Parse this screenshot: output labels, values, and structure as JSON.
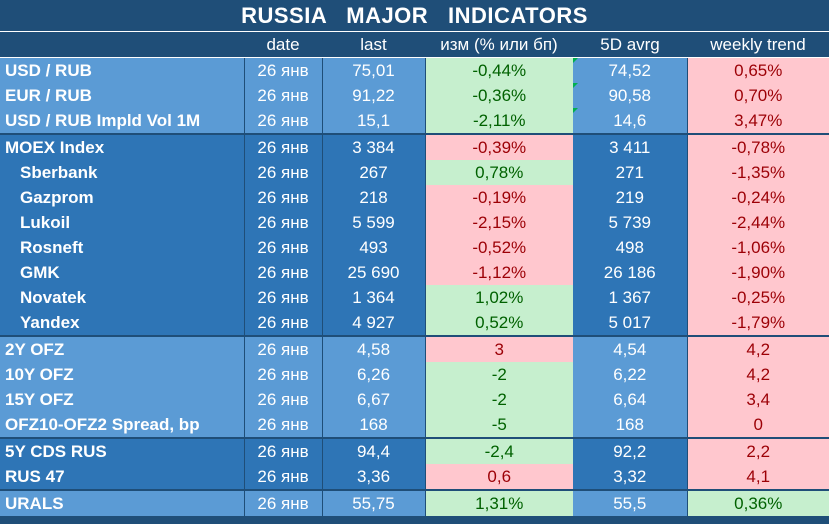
{
  "title": "RUSSIA   MAJOR   INDICATORS",
  "columns": {
    "name": "",
    "date": "date",
    "last": "last",
    "change": "изм (% или бп)",
    "avg5d": "5D avrg",
    "weekly": "weekly trend"
  },
  "rows": [
    {
      "name": "USD / RUB",
      "date": "26 янв",
      "last": "75,01",
      "change": "-0,44%",
      "change_sign": "pos",
      "avg5d": "74,52",
      "weekly": "0,65%",
      "weekly_sign": "neg"
    },
    {
      "name": "EUR / RUB",
      "date": "26 янв",
      "last": "91,22",
      "change": "-0,36%",
      "change_sign": "pos",
      "avg5d": "90,58",
      "weekly": "0,70%",
      "weekly_sign": "neg"
    },
    {
      "name": "USD / RUB Impld Vol 1M",
      "date": "26 янв",
      "last": "15,1",
      "change": "-2,11%",
      "change_sign": "pos",
      "avg5d": "14,6",
      "weekly": "3,47%",
      "weekly_sign": "neg"
    },
    {
      "name": "MOEX Index",
      "date": "26 янв",
      "last": "3 384",
      "change": "-0,39%",
      "change_sign": "neg",
      "avg5d": "3 411",
      "weekly": "-0,78%",
      "weekly_sign": "neg"
    },
    {
      "name": "Sberbank",
      "date": "26 янв",
      "last": "267",
      "change": "0,78%",
      "change_sign": "pos",
      "avg5d": "271",
      "weekly": "-1,35%",
      "weekly_sign": "neg"
    },
    {
      "name": "Gazprom",
      "date": "26 янв",
      "last": "218",
      "change": "-0,19%",
      "change_sign": "neg",
      "avg5d": "219",
      "weekly": "-0,24%",
      "weekly_sign": "neg"
    },
    {
      "name": "Lukoil",
      "date": "26 янв",
      "last": "5 599",
      "change": "-2,15%",
      "change_sign": "neg",
      "avg5d": "5 739",
      "weekly": "-2,44%",
      "weekly_sign": "neg"
    },
    {
      "name": "Rosneft",
      "date": "26 янв",
      "last": "493",
      "change": "-0,52%",
      "change_sign": "neg",
      "avg5d": "498",
      "weekly": "-1,06%",
      "weekly_sign": "neg"
    },
    {
      "name": "GMK",
      "date": "26 янв",
      "last": "25 690",
      "change": "-1,12%",
      "change_sign": "neg",
      "avg5d": "26 186",
      "weekly": "-1,90%",
      "weekly_sign": "neg"
    },
    {
      "name": "Novatek",
      "date": "26 янв",
      "last": "1 364",
      "change": "1,02%",
      "change_sign": "pos",
      "avg5d": "1 367",
      "weekly": "-0,25%",
      "weekly_sign": "neg"
    },
    {
      "name": "Yandex",
      "date": "26 янв",
      "last": "4 927",
      "change": "0,52%",
      "change_sign": "pos",
      "avg5d": "5 017",
      "weekly": "-1,79%",
      "weekly_sign": "neg"
    },
    {
      "name": "2Y OFZ",
      "date": "26 янв",
      "last": "4,58",
      "change": "3",
      "change_sign": "neg",
      "avg5d": "4,54",
      "weekly": "4,2",
      "weekly_sign": "neg"
    },
    {
      "name": "10Y OFZ",
      "date": "26 янв",
      "last": "6,26",
      "change": "-2",
      "change_sign": "pos",
      "avg5d": "6,22",
      "weekly": "4,2",
      "weekly_sign": "neg"
    },
    {
      "name": "15Y OFZ",
      "date": "26 янв",
      "last": "6,67",
      "change": "-2",
      "change_sign": "pos",
      "avg5d": "6,64",
      "weekly": "3,4",
      "weekly_sign": "neg"
    },
    {
      "name": "OFZ10-OFZ2 Spread, bp",
      "date": "26 янв",
      "last": "168",
      "change": "-5",
      "change_sign": "pos",
      "avg5d": "168",
      "weekly": "0",
      "weekly_sign": "neg"
    },
    {
      "name": "5Y CDS RUS",
      "date": "26 янв",
      "last": "94,4",
      "change": "-2,4",
      "change_sign": "pos",
      "avg5d": "92,2",
      "weekly": "2,2",
      "weekly_sign": "neg"
    },
    {
      "name": "RUS 47",
      "date": "26 янв",
      "last": "3,36",
      "change": "0,6",
      "change_sign": "neg",
      "avg5d": "3,32",
      "weekly": "4,1",
      "weekly_sign": "neg"
    },
    {
      "name": "URALS",
      "date": "26 янв",
      "last": "55,75",
      "change": "1,31%",
      "change_sign": "pos",
      "avg5d": "55,5",
      "weekly": "0,36%",
      "weekly_sign": "pos"
    }
  ],
  "colors": {
    "header_bg": "#1f4e78",
    "row_light": "#5b9bd5",
    "row_dark": "#2e75b6",
    "positive_bg": "#c6efce",
    "positive_fg": "#006100",
    "negative_bg": "#ffc7ce",
    "negative_fg": "#9c0006"
  }
}
